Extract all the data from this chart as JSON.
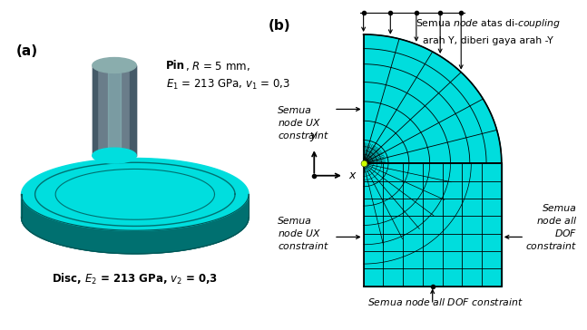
{
  "fig_width": 6.47,
  "fig_height": 3.64,
  "dpi": 100,
  "bg_color": "#ffffff",
  "panel_a_label": "(a)",
  "panel_b_label": "(b)",
  "pin_label_bold": "Pin",
  "pin_label_rest": ", $R$ = 5 mm,",
  "pin_label2": "$E_1$ = 213 GPa, $v_1$ = 0,3",
  "disc_label": "Disc, $E_2$ = 213 GPa, $v_2$ = 0,3",
  "top_text1": "Semua $node$ atas di-$coupling$",
  "top_text2": "arah Y, diberi gaya arah -Y",
  "left_top_line1": "Semua",
  "left_top_line2": "$node$ $UX$",
  "left_top_line3": "$constraint$",
  "left_bot_line1": "Semua",
  "left_bot_line2": "$node$ $UX$",
  "left_bot_line3": "$constraint$",
  "right_bot_line1": "Semua",
  "right_bot_line2": "$node$ $all$",
  "right_bot_line3": "$DOF$",
  "right_bot_line4": "$constraint$",
  "bot_text": "$Semua$ $node$ $all$ $DOF$ $constraint$",
  "cyan": "#00DEDE",
  "cyan_bright": "#00EEEE",
  "dark_teal": "#007070",
  "darker_teal": "#005555",
  "pin_gray_main": "#6A7D8A",
  "pin_gray_light": "#8AADAD",
  "pin_gray_dark": "#455A68",
  "mesh_cyan": "#00DDDD",
  "mesh_line": "#000000"
}
